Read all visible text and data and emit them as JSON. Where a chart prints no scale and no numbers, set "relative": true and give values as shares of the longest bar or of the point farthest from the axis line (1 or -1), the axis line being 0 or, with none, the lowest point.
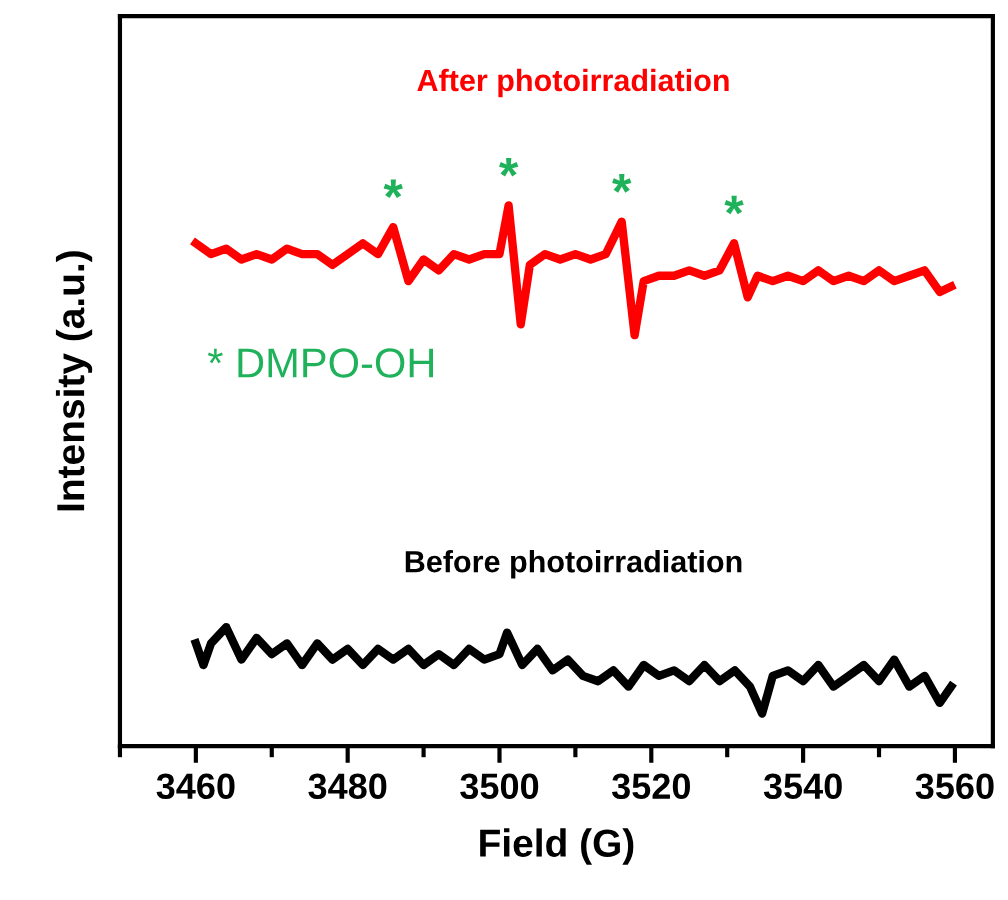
{
  "chart_data": {
    "type": "line",
    "xlabel": "Field (G)",
    "ylabel": "Intensity (a.u.)",
    "relative": true,
    "xlim": [
      3450,
      3565
    ],
    "xticks": [
      {
        "value": 3450,
        "label": null
      },
      3460,
      {
        "value": 3470,
        "label": null
      },
      3480,
      {
        "value": 3490,
        "label": null
      },
      3500,
      {
        "value": 3510,
        "label": null
      },
      3520,
      {
        "value": 3530,
        "label": null
      },
      3540,
      {
        "value": 3550,
        "label": null
      },
      3560
    ],
    "tick_labels": "x",
    "legend": false,
    "grid": false,
    "marker": "none",
    "line_style": "solid",
    "series": [
      {
        "name": "After photoirradiation",
        "color": "#ff0000",
        "x": [
          3460,
          3462,
          3464,
          3466,
          3468,
          3470,
          3472,
          3474,
          3476,
          3478,
          3480,
          3482,
          3484,
          3486,
          3488,
          3490,
          3492,
          3494,
          3496,
          3498,
          3500,
          3501.2,
          3502.8,
          3504,
          3506,
          3508,
          3510,
          3512,
          3514,
          3516.1,
          3517.8,
          3519,
          3521,
          3523,
          3525,
          3527,
          3529,
          3530.9,
          3532.7,
          3534,
          3536,
          3538,
          3540,
          3542,
          3544,
          3546,
          3548,
          3550,
          3552,
          3554,
          3556,
          3558,
          3559.5
        ],
        "values": [
          0.93,
          0.91,
          0.92,
          0.9,
          0.91,
          0.9,
          0.92,
          0.91,
          0.91,
          0.89,
          0.91,
          0.93,
          0.91,
          0.96,
          0.86,
          0.9,
          0.88,
          0.91,
          0.9,
          0.91,
          0.91,
          1.0,
          0.78,
          0.89,
          0.91,
          0.9,
          0.91,
          0.9,
          0.91,
          0.97,
          0.76,
          0.86,
          0.87,
          0.87,
          0.88,
          0.87,
          0.88,
          0.93,
          0.83,
          0.87,
          0.86,
          0.87,
          0.86,
          0.88,
          0.86,
          0.87,
          0.86,
          0.88,
          0.86,
          0.87,
          0.88,
          0.84,
          0.85
        ]
      },
      {
        "name": "Before photoirradiation",
        "color": "#000000",
        "x": [
          3460,
          3461,
          3462,
          3464,
          3466,
          3468,
          3470,
          3472,
          3474,
          3476,
          3478,
          3480,
          3482,
          3484,
          3486,
          3488,
          3490,
          3492,
          3494,
          3496,
          3498,
          3500,
          3501,
          3503,
          3505,
          3507,
          3509,
          3511,
          3513,
          3515,
          3517,
          3519,
          3521,
          3523,
          3525,
          3527,
          3529,
          3531,
          3533,
          3534.6,
          3536,
          3538,
          3540,
          3542,
          3544,
          3546,
          3548,
          3550,
          3552,
          3554,
          3556,
          3558,
          3559.5
        ],
        "values": [
          0.19,
          0.15,
          0.19,
          0.22,
          0.16,
          0.2,
          0.17,
          0.19,
          0.15,
          0.19,
          0.16,
          0.18,
          0.15,
          0.18,
          0.16,
          0.18,
          0.15,
          0.17,
          0.15,
          0.18,
          0.16,
          0.17,
          0.21,
          0.15,
          0.18,
          0.14,
          0.16,
          0.13,
          0.12,
          0.14,
          0.11,
          0.15,
          0.13,
          0.14,
          0.12,
          0.15,
          0.12,
          0.14,
          0.11,
          0.06,
          0.13,
          0.14,
          0.12,
          0.15,
          0.11,
          0.13,
          0.15,
          0.12,
          0.16,
          0.11,
          0.13,
          0.08,
          0.11
        ]
      }
    ],
    "annotations": [
      {
        "text": "*",
        "x": 3486,
        "y": 0.96
      },
      {
        "text": "*",
        "x": 3501.2,
        "y": 1.0
      },
      {
        "text": "*",
        "x": 3516.1,
        "y": 0.97
      },
      {
        "text": "*",
        "x": 3530.9,
        "y": 0.93
      },
      "* DMPO-OH"
    ]
  }
}
